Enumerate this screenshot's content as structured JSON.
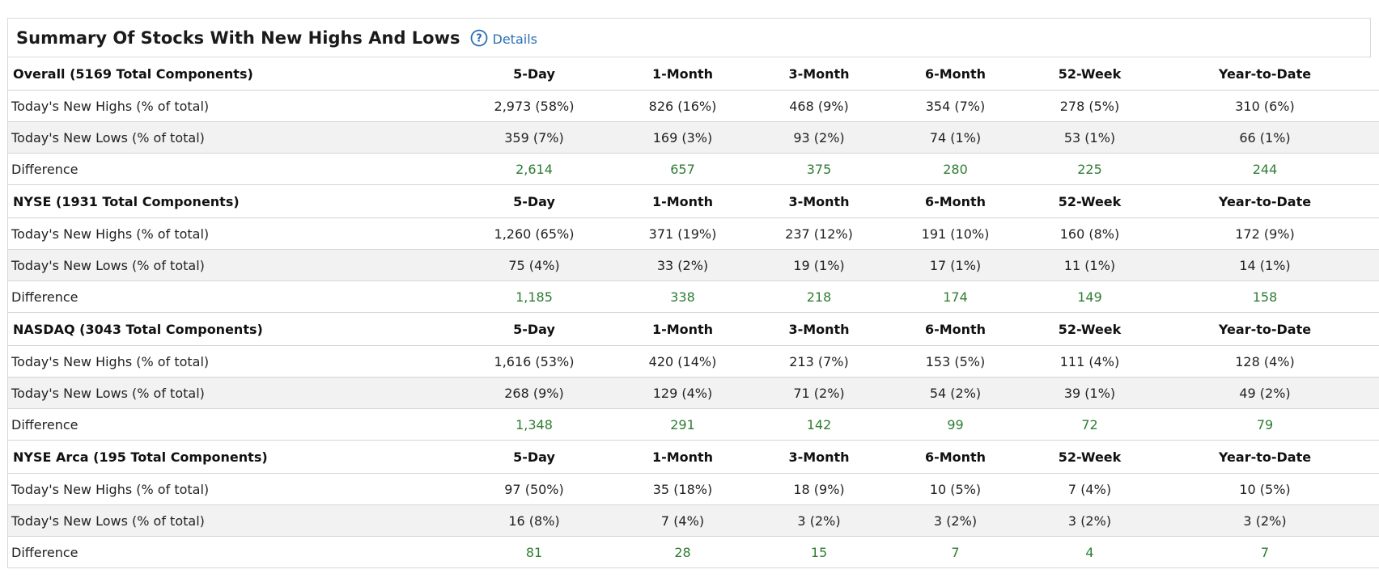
{
  "header": {
    "title": "Summary Of Stocks With New Highs And Lows",
    "details_label": "Details"
  },
  "columns": [
    "5-Day",
    "1-Month",
    "3-Month",
    "6-Month",
    "52-Week",
    "Year-to-Date"
  ],
  "colors": {
    "difference": "#2e7d32",
    "link": "#2a6fb5",
    "shade_row": "#f2f2f2"
  },
  "sections": [
    {
      "name": "Overall (5169 Total Components)",
      "highs_label": "Today's New Highs (% of total)",
      "highs": [
        "2,973 (58%)",
        "826 (16%)",
        "468 (9%)",
        "354 (7%)",
        "278 (5%)",
        "310 (6%)"
      ],
      "lows_label": "Today's New Lows (% of total)",
      "lows": [
        "359 (7%)",
        "169 (3%)",
        "93 (2%)",
        "74 (1%)",
        "53 (1%)",
        "66 (1%)"
      ],
      "diff_label": "Difference",
      "diff": [
        "2,614",
        "657",
        "375",
        "280",
        "225",
        "244"
      ]
    },
    {
      "name": "NYSE (1931 Total Components)",
      "highs_label": "Today's New Highs (% of total)",
      "highs": [
        "1,260 (65%)",
        "371 (19%)",
        "237 (12%)",
        "191 (10%)",
        "160 (8%)",
        "172 (9%)"
      ],
      "lows_label": "Today's New Lows (% of total)",
      "lows": [
        "75 (4%)",
        "33 (2%)",
        "19 (1%)",
        "17 (1%)",
        "11 (1%)",
        "14 (1%)"
      ],
      "diff_label": "Difference",
      "diff": [
        "1,185",
        "338",
        "218",
        "174",
        "149",
        "158"
      ]
    },
    {
      "name": "NASDAQ (3043 Total Components)",
      "highs_label": "Today's New Highs (% of total)",
      "highs": [
        "1,616 (53%)",
        "420 (14%)",
        "213 (7%)",
        "153 (5%)",
        "111 (4%)",
        "128 (4%)"
      ],
      "lows_label": "Today's New Lows (% of total)",
      "lows": [
        "268 (9%)",
        "129 (4%)",
        "71 (2%)",
        "54 (2%)",
        "39 (1%)",
        "49 (2%)"
      ],
      "diff_label": "Difference",
      "diff": [
        "1,348",
        "291",
        "142",
        "99",
        "72",
        "79"
      ]
    },
    {
      "name": "NYSE Arca (195 Total Components)",
      "highs_label": "Today's New Highs (% of total)",
      "highs": [
        "97 (50%)",
        "35 (18%)",
        "18 (9%)",
        "10 (5%)",
        "7 (4%)",
        "10 (5%)"
      ],
      "lows_label": "Today's New Lows (% of total)",
      "lows": [
        "16 (8%)",
        "7 (4%)",
        "3 (2%)",
        "3 (2%)",
        "3 (2%)",
        "3 (2%)"
      ],
      "diff_label": "Difference",
      "diff": [
        "81",
        "28",
        "15",
        "7",
        "4",
        "7"
      ]
    }
  ]
}
